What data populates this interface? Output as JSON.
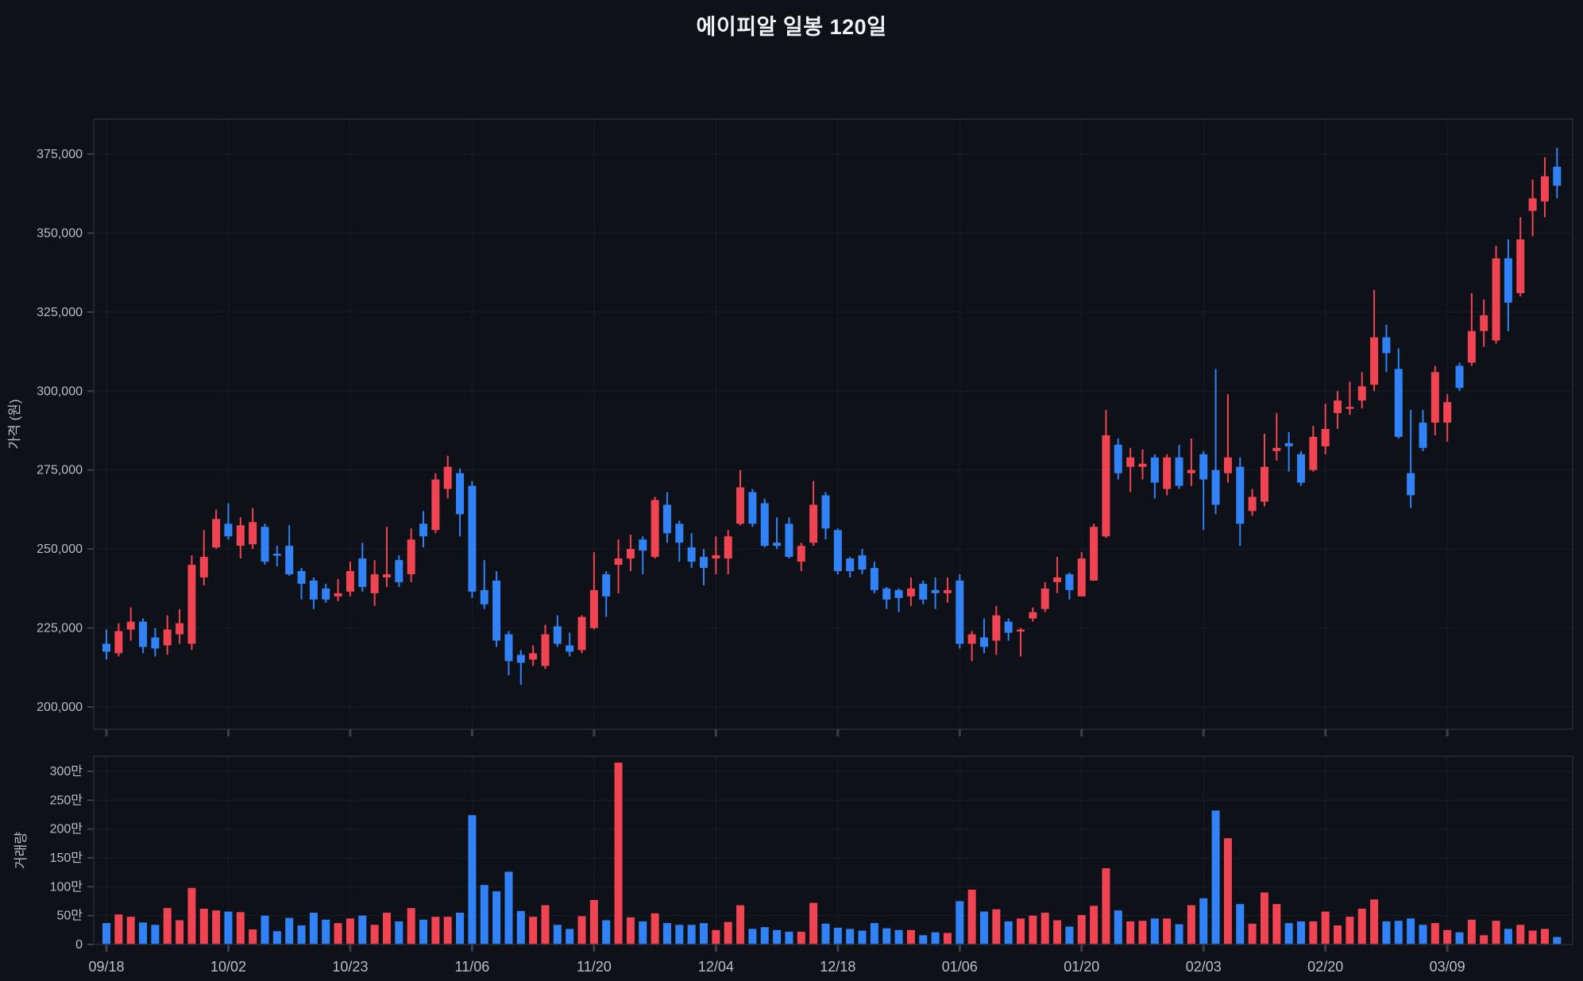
{
  "title": "에이피알 일봉 120일",
  "colors": {
    "background": "#0e1117",
    "up": "#f04452",
    "down": "#3182f6",
    "grid": "#1a1d25",
    "panel_border": "#272b35",
    "tick_mark": "#3a404b",
    "axis_text": "#b9bdc5",
    "title_text": "#f1f2f4"
  },
  "chart_data": {
    "type": "candlestick_with_volume",
    "title": "에이피알 일봉 120일",
    "price_axis": {
      "label": "가격 (원)",
      "min": 200000,
      "max": 375000,
      "ticks": [
        {
          "value": 375000,
          "label": "375,000"
        },
        {
          "value": 350000,
          "label": "350,000"
        },
        {
          "value": 325000,
          "label": "325,000"
        },
        {
          "value": 300000,
          "label": "300,000"
        },
        {
          "value": 275000,
          "label": "275,000"
        },
        {
          "value": 250000,
          "label": "250,000"
        },
        {
          "value": 225000,
          "label": "225,000"
        },
        {
          "value": 200000,
          "label": "200,000"
        }
      ]
    },
    "volume_axis": {
      "label": "거래량",
      "unit_note": "values are in units of 10,000 shares (만)",
      "max": 300,
      "ticks": [
        {
          "value": 300,
          "label": "300만"
        },
        {
          "value": 250,
          "label": "250만"
        },
        {
          "value": 200,
          "label": "200만"
        },
        {
          "value": 150,
          "label": "150만"
        },
        {
          "value": 100,
          "label": "100만"
        },
        {
          "value": 50,
          "label": "50만"
        },
        {
          "value": 0,
          "label": "0"
        }
      ]
    },
    "x_axis": {
      "ticks": [
        {
          "index": 0,
          "label": "09/18"
        },
        {
          "index": 10,
          "label": "10/02"
        },
        {
          "index": 20,
          "label": "10/23"
        },
        {
          "index": 30,
          "label": "11/06"
        },
        {
          "index": 40,
          "label": "11/20"
        },
        {
          "index": 50,
          "label": "12/04"
        },
        {
          "index": 60,
          "label": "12/18"
        },
        {
          "index": 70,
          "label": "01/06"
        },
        {
          "index": 80,
          "label": "01/20"
        },
        {
          "index": 90,
          "label": "02/03"
        },
        {
          "index": 100,
          "label": "02/20"
        },
        {
          "index": 110,
          "label": "03/09"
        }
      ]
    },
    "columns": [
      "open",
      "high",
      "low",
      "close",
      "volume_x10k"
    ],
    "up_means": "close >= open rendered red, close < open rendered blue",
    "candles": [
      [
        220000,
        224500,
        215000,
        217500,
        37
      ],
      [
        217000,
        226500,
        216000,
        224000,
        52
      ],
      [
        224500,
        231500,
        221000,
        227000,
        48
      ],
      [
        227000,
        228000,
        217000,
        219000,
        38
      ],
      [
        222000,
        225000,
        216000,
        218500,
        34
      ],
      [
        219500,
        229000,
        216500,
        224500,
        63
      ],
      [
        223000,
        231000,
        220000,
        226500,
        42
      ],
      [
        220000,
        248000,
        218000,
        245000,
        98
      ],
      [
        241000,
        256000,
        238500,
        247500,
        62
      ],
      [
        250500,
        262500,
        250000,
        259500,
        59
      ],
      [
        258000,
        264500,
        253000,
        254000,
        57
      ],
      [
        251000,
        260000,
        247000,
        257500,
        56
      ],
      [
        251500,
        263000,
        250000,
        258500,
        26
      ],
      [
        257000,
        258000,
        245000,
        246000,
        50
      ],
      [
        248500,
        251000,
        244500,
        248000,
        23
      ],
      [
        251000,
        257500,
        241500,
        242000,
        46
      ],
      [
        243000,
        244000,
        234000,
        239000,
        33
      ],
      [
        240000,
        241000,
        231000,
        234000,
        55
      ],
      [
        237500,
        239000,
        233000,
        234000,
        43
      ],
      [
        235000,
        240500,
        233500,
        236000,
        37
      ],
      [
        236500,
        246000,
        235000,
        243000,
        45
      ],
      [
        247000,
        252000,
        236500,
        238000,
        50
      ],
      [
        236000,
        246500,
        232000,
        242000,
        34
      ],
      [
        241000,
        257000,
        238000,
        242000,
        55
      ],
      [
        246500,
        248000,
        238000,
        239500,
        40
      ],
      [
        242000,
        256500,
        239500,
        253000,
        63
      ],
      [
        258000,
        262000,
        250500,
        254000,
        43
      ],
      [
        256000,
        274000,
        255000,
        272000,
        48
      ],
      [
        269000,
        279500,
        266000,
        276000,
        48
      ],
      [
        274000,
        275500,
        254000,
        261000,
        55
      ],
      [
        270000,
        271500,
        234500,
        236500,
        224
      ],
      [
        237000,
        246500,
        231000,
        232500,
        103
      ],
      [
        240000,
        243000,
        219000,
        221000,
        92
      ],
      [
        223000,
        224000,
        210000,
        214500,
        126
      ],
      [
        216500,
        218000,
        207000,
        214000,
        58
      ],
      [
        215000,
        219500,
        213000,
        217000,
        48
      ],
      [
        213000,
        226000,
        212000,
        223000,
        68
      ],
      [
        225500,
        229000,
        219000,
        220000,
        34
      ],
      [
        219500,
        223500,
        216000,
        217500,
        27
      ],
      [
        218000,
        229000,
        217000,
        228500,
        49
      ],
      [
        225000,
        249000,
        224500,
        237000,
        77
      ],
      [
        242000,
        243000,
        228500,
        235000,
        42
      ],
      [
        245000,
        253000,
        236000,
        247000,
        315
      ],
      [
        247000,
        254500,
        243000,
        250000,
        47
      ],
      [
        253000,
        254000,
        242000,
        249500,
        40
      ],
      [
        247500,
        266500,
        247000,
        265500,
        54
      ],
      [
        264000,
        268000,
        252000,
        255000,
        37
      ],
      [
        258000,
        259000,
        246000,
        252000,
        34
      ],
      [
        250500,
        255000,
        244000,
        246000,
        34
      ],
      [
        247500,
        250000,
        238500,
        244000,
        37
      ],
      [
        247000,
        254000,
        242000,
        248000,
        25
      ],
      [
        247000,
        256000,
        242000,
        254000,
        39
      ],
      [
        258000,
        275000,
        257500,
        269500,
        68
      ],
      [
        268000,
        269000,
        257000,
        258000,
        27
      ],
      [
        264500,
        266000,
        250500,
        251000,
        30
      ],
      [
        252000,
        260000,
        250000,
        251000,
        25
      ],
      [
        258000,
        260000,
        247000,
        247500,
        22
      ],
      [
        246000,
        252000,
        243000,
        251000,
        22
      ],
      [
        252000,
        271500,
        251000,
        264000,
        72
      ],
      [
        267000,
        268000,
        253000,
        256500,
        36
      ],
      [
        256000,
        256500,
        242000,
        243000,
        29
      ],
      [
        247000,
        247500,
        241000,
        243000,
        27
      ],
      [
        248000,
        250000,
        242000,
        243500,
        24
      ],
      [
        244000,
        246000,
        236000,
        237000,
        37
      ],
      [
        237500,
        238000,
        231000,
        234000,
        28
      ],
      [
        237000,
        237500,
        230000,
        234500,
        25
      ],
      [
        235000,
        241000,
        232000,
        237500,
        25
      ],
      [
        239000,
        240000,
        232500,
        234000,
        16
      ],
      [
        237000,
        241000,
        231000,
        236000,
        21
      ],
      [
        236000,
        241000,
        233000,
        237000,
        20
      ],
      [
        240000,
        242000,
        218500,
        220000,
        75
      ],
      [
        220000,
        224000,
        214500,
        223000,
        95
      ],
      [
        222000,
        228000,
        217000,
        219000,
        57
      ],
      [
        221000,
        232000,
        216500,
        229000,
        61
      ],
      [
        227000,
        228000,
        221000,
        223500,
        40
      ],
      [
        224000,
        225000,
        216000,
        224500,
        45
      ],
      [
        228000,
        231500,
        227000,
        230000,
        50
      ],
      [
        231000,
        239500,
        230000,
        237500,
        55
      ],
      [
        239500,
        247500,
        236000,
        241000,
        42
      ],
      [
        242000,
        242500,
        234000,
        237000,
        31
      ],
      [
        235000,
        249000,
        235000,
        247000,
        51
      ],
      [
        240000,
        258000,
        240000,
        257000,
        67
      ],
      [
        254000,
        294000,
        253500,
        286000,
        132
      ],
      [
        283000,
        285000,
        272000,
        274000,
        59
      ],
      [
        276000,
        282000,
        268000,
        279000,
        40
      ],
      [
        276000,
        281500,
        272000,
        277000,
        41
      ],
      [
        279000,
        280000,
        266000,
        271000,
        45
      ],
      [
        269000,
        280000,
        267000,
        279000,
        45
      ],
      [
        279000,
        283000,
        269000,
        270000,
        35
      ],
      [
        274000,
        285000,
        270000,
        275000,
        68
      ],
      [
        280000,
        281000,
        256000,
        272000,
        80
      ],
      [
        275000,
        307000,
        261000,
        264000,
        232
      ],
      [
        274000,
        299000,
        271000,
        279000,
        184
      ],
      [
        276000,
        279000,
        251000,
        258000,
        70
      ],
      [
        262000,
        269000,
        260500,
        266500,
        36
      ],
      [
        265000,
        286500,
        263500,
        276000,
        90
      ],
      [
        281000,
        293000,
        278000,
        282000,
        70
      ],
      [
        283500,
        287000,
        274500,
        282500,
        37
      ],
      [
        280000,
        281000,
        270000,
        271000,
        40
      ],
      [
        275000,
        289000,
        274500,
        285500,
        40
      ],
      [
        282500,
        296000,
        280000,
        288000,
        57
      ],
      [
        293000,
        300000,
        288000,
        297000,
        33
      ],
      [
        294500,
        303000,
        292500,
        295000,
        48
      ],
      [
        297000,
        306000,
        294500,
        301500,
        62
      ],
      [
        302000,
        332000,
        300000,
        317000,
        78
      ],
      [
        317000,
        321000,
        306000,
        312000,
        40
      ],
      [
        307000,
        313500,
        285000,
        285500,
        41
      ],
      [
        274000,
        294000,
        263000,
        267000,
        45
      ],
      [
        290000,
        294000,
        281000,
        282000,
        34
      ],
      [
        290000,
        308000,
        286000,
        306000,
        37
      ],
      [
        290000,
        299000,
        284000,
        296500,
        25
      ],
      [
        308000,
        309000,
        300000,
        301000,
        21
      ],
      [
        309000,
        331000,
        308000,
        319000,
        43
      ],
      [
        319000,
        329000,
        314000,
        324000,
        16
      ],
      [
        316000,
        346000,
        315000,
        342000,
        41
      ],
      [
        342000,
        348000,
        319000,
        328000,
        27
      ],
      [
        331000,
        355000,
        330000,
        348000,
        34
      ],
      [
        357000,
        367000,
        349000,
        361000,
        24
      ],
      [
        360000,
        374000,
        355000,
        368000,
        27
      ],
      [
        371000,
        377000,
        361000,
        365000,
        13
      ]
    ]
  }
}
